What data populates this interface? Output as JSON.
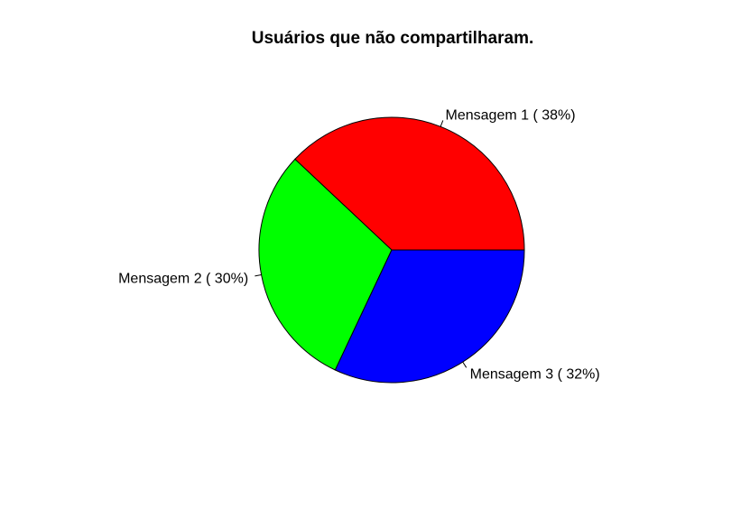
{
  "chart_data": {
    "type": "pie",
    "title": "Usuários que não compartilharam.",
    "slices": [
      {
        "label": "Mensagem 1 ( 38%)",
        "value": 38,
        "color": "#ff0000"
      },
      {
        "label": "Mensagem 2 ( 30%)",
        "value": 30,
        "color": "#00ff00"
      },
      {
        "label": "Mensagem 3 ( 32%)",
        "value": 32,
        "color": "#0000ff"
      }
    ],
    "start_angle": "3 o'clock",
    "direction": "counterclockwise",
    "legend": "none"
  }
}
